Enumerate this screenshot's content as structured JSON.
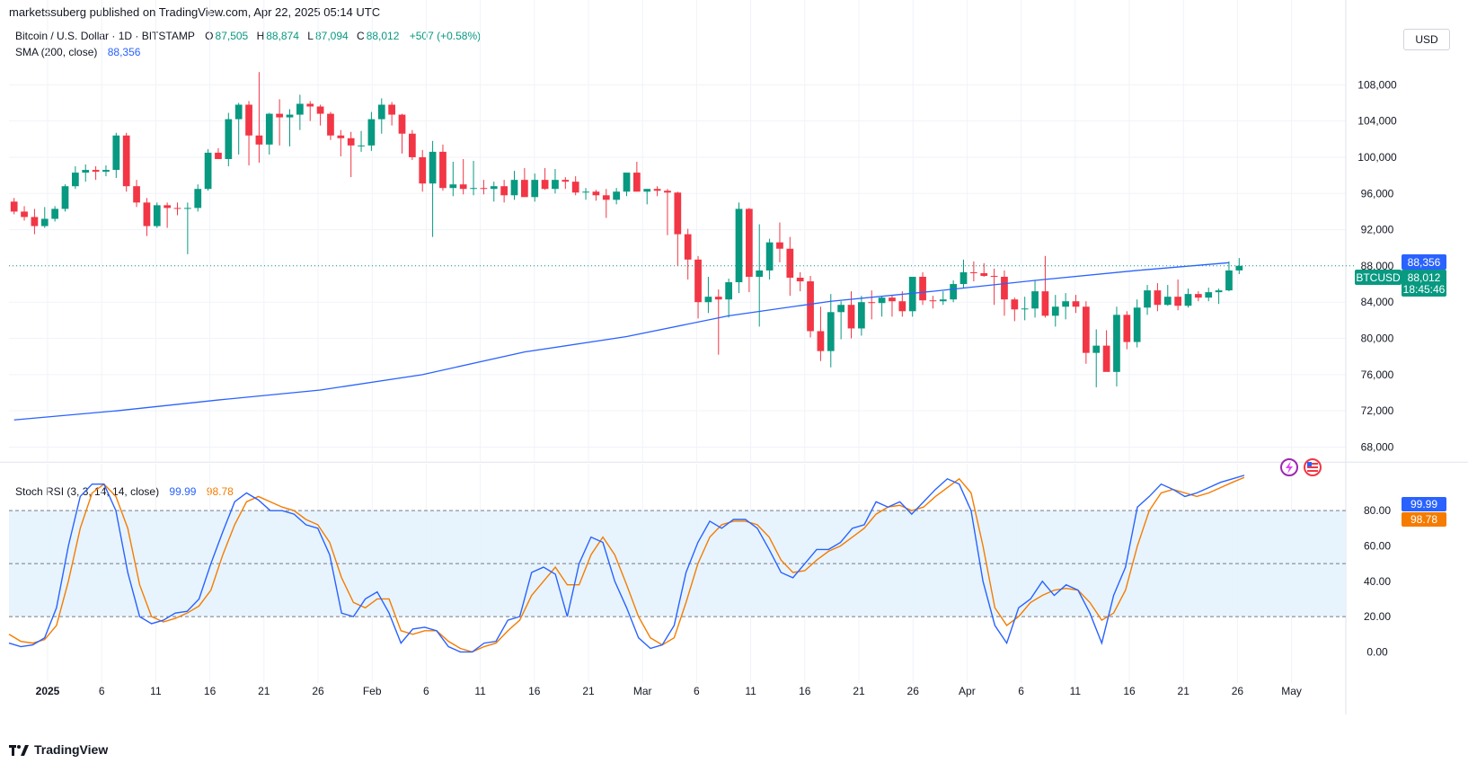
{
  "header": {
    "publisher": "marketssuberg published on TradingView.com, Apr 22, 2025 05:14 UTC"
  },
  "symbol": {
    "name": "Bitcoin / U.S. Dollar · 1D · BITSTAMP",
    "o_label": "O",
    "o": "87,505",
    "h_label": "H",
    "h": "88,874",
    "l_label": "L",
    "l": "87,094",
    "c_label": "C",
    "c": "88,012",
    "change": "+507 (+0.58%)"
  },
  "sma": {
    "label": "SMA (200, close)",
    "value": "88,356"
  },
  "stoch": {
    "label": "Stoch RSI (3, 3, 14, 14, close)",
    "k_value": "99.99",
    "d_value": "98.78"
  },
  "currency_button": "USD",
  "price_tags": {
    "ticker": "BTCUSD",
    "last": "88,012",
    "countdown": "18:45:46",
    "sma": "88,356"
  },
  "footer": {
    "brand": "TradingView"
  },
  "colors": {
    "up": "#089981",
    "down": "#f23645",
    "sma": "#2962ff",
    "k": "#2962ff",
    "d": "#f57c00",
    "band": "#e3f2fd"
  },
  "chart_data": {
    "type": "candlestick",
    "price_axis": {
      "ylim": [
        66500,
        111000
      ],
      "ticks": [
        "108,000",
        "104,000",
        "100,000",
        "96,000",
        "92,000",
        "88,000",
        "84,000",
        "80,000",
        "76,000",
        "72,000",
        "68,000"
      ]
    },
    "osc_axis": {
      "ylim": [
        -5,
        105
      ],
      "ticks": [
        "80.00",
        "60.00",
        "40.00",
        "20.00",
        "0.00"
      ],
      "levels": [
        80,
        50,
        20
      ]
    },
    "x_ticks": [
      "2025",
      "6",
      "11",
      "16",
      "21",
      "26",
      "Feb",
      "6",
      "11",
      "16",
      "21",
      "Mar",
      "6",
      "11",
      "16",
      "21",
      "26",
      "Apr",
      "6",
      "11",
      "16",
      "21",
      "26",
      "May"
    ],
    "candles": [
      [
        95100,
        95500,
        93700,
        94000
      ],
      [
        94000,
        94600,
        93000,
        93400
      ],
      [
        93400,
        94300,
        91500,
        92400
      ],
      [
        92400,
        94500,
        92200,
        93200
      ],
      [
        93200,
        94600,
        92900,
        94300
      ],
      [
        94300,
        97000,
        94000,
        96800
      ],
      [
        96800,
        99000,
        96500,
        98300
      ],
      [
        98300,
        99200,
        97300,
        98600
      ],
      [
        98600,
        99000,
        97500,
        98400
      ],
      [
        98400,
        99100,
        97900,
        98600
      ],
      [
        98600,
        102700,
        97700,
        102400
      ],
      [
        102400,
        102700,
        96200,
        96800
      ],
      [
        96800,
        97500,
        94500,
        95000
      ],
      [
        95000,
        95500,
        91300,
        92400
      ],
      [
        92400,
        95000,
        92200,
        94700
      ],
      [
        94700,
        95000,
        92200,
        94400
      ],
      [
        94400,
        95000,
        93600,
        94300
      ],
      [
        94300,
        95000,
        89300,
        94400
      ],
      [
        94400,
        97000,
        94000,
        96500
      ],
      [
        96500,
        100900,
        96300,
        100500
      ],
      [
        100500,
        101000,
        99800,
        99800
      ],
      [
        99800,
        104900,
        99000,
        104200
      ],
      [
        104200,
        106000,
        100300,
        105800
      ],
      [
        105800,
        106200,
        99100,
        102400
      ],
      [
        102400,
        109400,
        99400,
        101400
      ],
      [
        101400,
        104900,
        100300,
        104800
      ],
      [
        104800,
        106400,
        101300,
        104400
      ],
      [
        104400,
        105300,
        101200,
        104700
      ],
      [
        104700,
        106900,
        103000,
        105900
      ],
      [
        105900,
        106200,
        104000,
        105600
      ],
      [
        105600,
        105800,
        103500,
        104800
      ],
      [
        104800,
        105000,
        101900,
        102400
      ],
      [
        102400,
        103000,
        100100,
        102100
      ],
      [
        102100,
        102800,
        97800,
        101300
      ],
      [
        101300,
        102900,
        100600,
        101300
      ],
      [
        101300,
        105000,
        100700,
        104200
      ],
      [
        104200,
        106500,
        102600,
        105800
      ],
      [
        105800,
        106100,
        103500,
        104700
      ],
      [
        104700,
        104800,
        100400,
        102600
      ],
      [
        102600,
        103000,
        99700,
        100000
      ],
      [
        100000,
        100800,
        96200,
        97100
      ],
      [
        97100,
        101800,
        91200,
        100600
      ],
      [
        100600,
        101400,
        96300,
        96600
      ],
      [
        96600,
        99500,
        95700,
        97000
      ],
      [
        97000,
        99800,
        95900,
        96500
      ],
      [
        96500,
        99600,
        95800,
        96600
      ],
      [
        96600,
        97500,
        95900,
        96500
      ],
      [
        96500,
        97300,
        95100,
        96800
      ],
      [
        96800,
        97500,
        95000,
        95800
      ],
      [
        95800,
        98500,
        95300,
        97500
      ],
      [
        97500,
        98800,
        95800,
        95600
      ],
      [
        95600,
        98200,
        95100,
        97500
      ],
      [
        97500,
        98800,
        96400,
        96500
      ],
      [
        96500,
        98700,
        96000,
        97500
      ],
      [
        97500,
        97800,
        96500,
        97300
      ],
      [
        97300,
        97900,
        95800,
        96100
      ],
      [
        96100,
        96600,
        95300,
        96200
      ],
      [
        96200,
        96400,
        95200,
        95800
      ],
      [
        95800,
        96500,
        93300,
        95300
      ],
      [
        95300,
        96600,
        94800,
        96200
      ],
      [
        96200,
        98000,
        95700,
        98300
      ],
      [
        98300,
        99500,
        96200,
        96200
      ],
      [
        96200,
        96500,
        94800,
        96500
      ],
      [
        96500,
        96800,
        95700,
        96300
      ],
      [
        96300,
        96500,
        91400,
        96100
      ],
      [
        96100,
        96200,
        88000,
        91500
      ],
      [
        91500,
        92100,
        86500,
        88700
      ],
      [
        88700,
        89100,
        82200,
        84000
      ],
      [
        84000,
        86800,
        82800,
        84600
      ],
      [
        84600,
        85400,
        78200,
        84300
      ],
      [
        84300,
        86600,
        82300,
        86200
      ],
      [
        86200,
        95000,
        85000,
        94300
      ],
      [
        94300,
        94400,
        85100,
        86800
      ],
      [
        86800,
        92600,
        81300,
        87500
      ],
      [
        87500,
        91000,
        86500,
        90600
      ],
      [
        90600,
        92800,
        88400,
        89900
      ],
      [
        89900,
        91200,
        84700,
        86700
      ],
      [
        86700,
        87300,
        85200,
        86300
      ],
      [
        86300,
        86900,
        80100,
        80800
      ],
      [
        80800,
        83500,
        77500,
        78600
      ],
      [
        78600,
        84900,
        76800,
        82900
      ],
      [
        82900,
        84100,
        79900,
        83700
      ],
      [
        83700,
        85200,
        80000,
        81100
      ],
      [
        81100,
        84700,
        80300,
        84000
      ],
      [
        84000,
        85300,
        82100,
        83900
      ],
      [
        83900,
        84700,
        82400,
        84500
      ],
      [
        84500,
        84800,
        82400,
        84100
      ],
      [
        84100,
        85200,
        82400,
        83000
      ],
      [
        83000,
        86700,
        82400,
        86800
      ],
      [
        86800,
        87300,
        83700,
        84200
      ],
      [
        84200,
        84700,
        83300,
        84100
      ],
      [
        84100,
        85200,
        83700,
        84300
      ],
      [
        84300,
        86400,
        84000,
        86000
      ],
      [
        86000,
        88700,
        85600,
        87300
      ],
      [
        87300,
        88500,
        86300,
        87200
      ],
      [
        87200,
        88300,
        86800,
        86900
      ],
      [
        86900,
        87700,
        83700,
        86800
      ],
      [
        86800,
        87500,
        82500,
        84300
      ],
      [
        84300,
        84500,
        81900,
        83200
      ],
      [
        83200,
        84600,
        82000,
        83300
      ],
      [
        83300,
        86400,
        82300,
        85200
      ],
      [
        85200,
        89100,
        82300,
        82500
      ],
      [
        82500,
        84800,
        81300,
        83500
      ],
      [
        83500,
        85000,
        82100,
        84100
      ],
      [
        84100,
        84800,
        82800,
        83500
      ],
      [
        83500,
        84100,
        77200,
        78400
      ],
      [
        78400,
        81000,
        74600,
        79200
      ],
      [
        79200,
        80900,
        76500,
        76300
      ],
      [
        76300,
        83500,
        74700,
        82600
      ],
      [
        82600,
        83000,
        78800,
        79600
      ],
      [
        79600,
        84300,
        79000,
        83400
      ],
      [
        83400,
        85900,
        82600,
        85300
      ],
      [
        85300,
        86100,
        83000,
        83700
      ],
      [
        83700,
        85900,
        83600,
        84600
      ],
      [
        84600,
        86500,
        83100,
        83600
      ],
      [
        83600,
        85500,
        83400,
        84900
      ],
      [
        84900,
        85200,
        84100,
        84500
      ],
      [
        84500,
        85600,
        84100,
        85100
      ],
      [
        85100,
        85500,
        83800,
        85300
      ],
      [
        85300,
        88500,
        85200,
        87500
      ],
      [
        87505,
        88874,
        87094,
        88012
      ]
    ],
    "sma": [
      [
        0,
        71000
      ],
      [
        10,
        72000
      ],
      [
        20,
        73200
      ],
      [
        30,
        74300
      ],
      [
        40,
        76000
      ],
      [
        50,
        78500
      ],
      [
        60,
        80200
      ],
      [
        70,
        82500
      ],
      [
        80,
        84100
      ],
      [
        90,
        85200
      ],
      [
        100,
        86400
      ],
      [
        110,
        87500
      ],
      [
        119,
        88356
      ]
    ],
    "stoch_k": [
      5,
      3,
      4,
      8,
      25,
      60,
      88,
      95,
      95,
      80,
      45,
      20,
      16,
      18,
      22,
      23,
      30,
      50,
      68,
      85,
      90,
      86,
      80,
      80,
      78,
      72,
      70,
      55,
      22,
      20,
      30,
      34,
      22,
      5,
      13,
      14,
      12,
      3,
      0,
      0,
      5,
      6,
      18,
      20,
      45,
      48,
      44,
      20,
      50,
      65,
      62,
      40,
      25,
      8,
      2,
      4,
      15,
      45,
      62,
      74,
      70,
      75,
      75,
      70,
      58,
      45,
      42,
      50,
      58,
      58,
      62,
      70,
      72,
      85,
      82,
      85,
      78,
      85,
      92,
      98,
      95,
      80,
      40,
      15,
      5,
      25,
      30,
      40,
      32,
      38,
      35,
      22,
      5,
      32,
      48,
      82,
      88,
      95,
      92,
      88,
      90,
      93,
      96,
      98,
      99.99
    ],
    "stoch_d": [
      10,
      6,
      5,
      7,
      15,
      40,
      70,
      90,
      95,
      88,
      70,
      38,
      20,
      17,
      19,
      22,
      26,
      35,
      55,
      72,
      85,
      88,
      85,
      82,
      80,
      75,
      72,
      62,
      42,
      28,
      25,
      30,
      30,
      12,
      10,
      12,
      12,
      6,
      2,
      0,
      3,
      5,
      12,
      18,
      32,
      40,
      48,
      38,
      38,
      55,
      65,
      55,
      38,
      20,
      8,
      4,
      8,
      28,
      50,
      65,
      72,
      74,
      74,
      72,
      65,
      52,
      45,
      46,
      52,
      57,
      60,
      65,
      70,
      78,
      82,
      83,
      80,
      82,
      88,
      93,
      98,
      90,
      60,
      25,
      15,
      20,
      28,
      32,
      35,
      36,
      35,
      28,
      18,
      22,
      35,
      60,
      80,
      90,
      92,
      90,
      88,
      90,
      93,
      96,
      98.78
    ]
  }
}
